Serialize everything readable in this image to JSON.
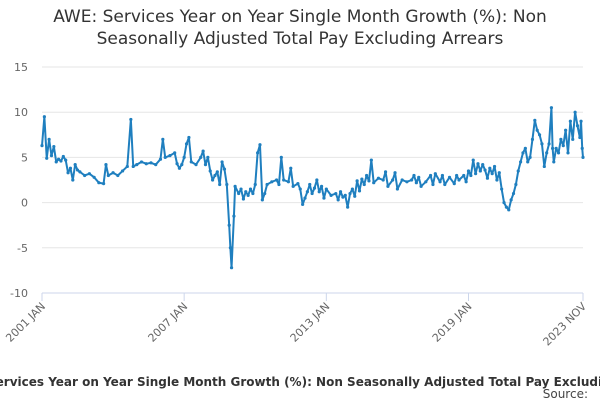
{
  "chart_data": {
    "type": "line",
    "title_line1": "AWE: Services Year on Year Single Month Growth (%): Non",
    "title_line2": "Seasonally Adjusted Total Pay Excluding Arrears",
    "xlabel": "",
    "ylabel": "",
    "ylim": [
      -10,
      15
    ],
    "yticks": [
      "15",
      "10",
      "5",
      "0",
      "-5",
      "-10"
    ],
    "ytick_values": [
      15,
      10,
      5,
      0,
      -5,
      -10
    ],
    "xlim": [
      2001.0,
      2023.833
    ],
    "xticks": [
      "2001 JAN",
      "2007 JAN",
      "2013 JAN",
      "2019 JAN",
      "2023 NOV"
    ],
    "xtick_values": [
      2001.0,
      2007.0,
      2013.0,
      2019.0,
      2023.833
    ],
    "grid": true,
    "legend": "bottom",
    "color": "#1f7fbf",
    "series": [
      {
        "name": "Services Year on Year Single Month Growth (%): Non Seasonally Adjusted Total Pay Excluding Arrears",
        "points": [
          [
            2001.0,
            6.3
          ],
          [
            2001.1,
            9.5
          ],
          [
            2001.2,
            4.9
          ],
          [
            2001.3,
            7.0
          ],
          [
            2001.4,
            5.2
          ],
          [
            2001.5,
            6.2
          ],
          [
            2001.6,
            4.5
          ],
          [
            2001.7,
            4.8
          ],
          [
            2001.8,
            4.6
          ],
          [
            2001.9,
            5.1
          ],
          [
            2002.0,
            4.7
          ],
          [
            2002.1,
            3.3
          ],
          [
            2002.2,
            3.8
          ],
          [
            2002.3,
            2.5
          ],
          [
            2002.4,
            4.2
          ],
          [
            2002.5,
            3.6
          ],
          [
            2002.6,
            3.4
          ],
          [
            2002.8,
            3.0
          ],
          [
            2003.0,
            3.2
          ],
          [
            2003.2,
            2.8
          ],
          [
            2003.4,
            2.2
          ],
          [
            2003.6,
            2.1
          ],
          [
            2003.7,
            4.2
          ],
          [
            2003.8,
            3.0
          ],
          [
            2004.0,
            3.3
          ],
          [
            2004.2,
            3.0
          ],
          [
            2004.4,
            3.5
          ],
          [
            2004.6,
            4.0
          ],
          [
            2004.75,
            9.2
          ],
          [
            2004.85,
            4.0
          ],
          [
            2005.0,
            4.2
          ],
          [
            2005.2,
            4.5
          ],
          [
            2005.4,
            4.3
          ],
          [
            2005.6,
            4.4
          ],
          [
            2005.8,
            4.2
          ],
          [
            2006.0,
            4.8
          ],
          [
            2006.1,
            7.0
          ],
          [
            2006.2,
            5.0
          ],
          [
            2006.4,
            5.2
          ],
          [
            2006.6,
            5.5
          ],
          [
            2006.7,
            4.3
          ],
          [
            2006.8,
            3.8
          ],
          [
            2006.9,
            4.2
          ],
          [
            2007.0,
            5.0
          ],
          [
            2007.1,
            6.5
          ],
          [
            2007.2,
            7.2
          ],
          [
            2007.3,
            4.5
          ],
          [
            2007.5,
            4.2
          ],
          [
            2007.7,
            5.0
          ],
          [
            2007.8,
            5.7
          ],
          [
            2007.9,
            4.2
          ],
          [
            2008.0,
            5.0
          ],
          [
            2008.1,
            3.5
          ],
          [
            2008.2,
            2.5
          ],
          [
            2008.3,
            3.0
          ],
          [
            2008.4,
            3.4
          ],
          [
            2008.5,
            2.0
          ],
          [
            2008.6,
            4.5
          ],
          [
            2008.7,
            3.7
          ],
          [
            2008.8,
            2.0
          ],
          [
            2008.9,
            -2.5
          ],
          [
            2008.95,
            -5.0
          ],
          [
            2009.0,
            -7.2
          ],
          [
            2009.1,
            -1.5
          ],
          [
            2009.15,
            1.8
          ],
          [
            2009.3,
            1.0
          ],
          [
            2009.4,
            1.5
          ],
          [
            2009.5,
            0.4
          ],
          [
            2009.6,
            1.2
          ],
          [
            2009.7,
            0.8
          ],
          [
            2009.8,
            1.5
          ],
          [
            2009.9,
            1.0
          ],
          [
            2010.0,
            2.0
          ],
          [
            2010.1,
            5.5
          ],
          [
            2010.2,
            6.4
          ],
          [
            2010.3,
            0.3
          ],
          [
            2010.4,
            1.0
          ],
          [
            2010.5,
            2.0
          ],
          [
            2010.7,
            2.3
          ],
          [
            2010.9,
            2.5
          ],
          [
            2011.0,
            2.0
          ],
          [
            2011.1,
            5.0
          ],
          [
            2011.2,
            2.5
          ],
          [
            2011.4,
            2.3
          ],
          [
            2011.5,
            3.8
          ],
          [
            2011.6,
            1.8
          ],
          [
            2011.8,
            2.1
          ],
          [
            2011.9,
            1.5
          ],
          [
            2012.0,
            -0.2
          ],
          [
            2012.1,
            0.5
          ],
          [
            2012.2,
            1.2
          ],
          [
            2012.3,
            2.0
          ],
          [
            2012.4,
            1.0
          ],
          [
            2012.5,
            1.6
          ],
          [
            2012.6,
            2.5
          ],
          [
            2012.7,
            1.2
          ],
          [
            2012.8,
            1.8
          ],
          [
            2012.9,
            0.5
          ],
          [
            2013.0,
            1.5
          ],
          [
            2013.2,
            0.8
          ],
          [
            2013.4,
            1.0
          ],
          [
            2013.5,
            0.3
          ],
          [
            2013.6,
            1.2
          ],
          [
            2013.7,
            0.6
          ],
          [
            2013.8,
            0.8
          ],
          [
            2013.9,
            -0.5
          ],
          [
            2014.0,
            1.0
          ],
          [
            2014.1,
            1.5
          ],
          [
            2014.2,
            0.7
          ],
          [
            2014.3,
            2.4
          ],
          [
            2014.4,
            1.3
          ],
          [
            2014.5,
            2.6
          ],
          [
            2014.6,
            2.0
          ],
          [
            2014.7,
            3.0
          ],
          [
            2014.8,
            2.4
          ],
          [
            2014.9,
            4.7
          ],
          [
            2015.0,
            2.2
          ],
          [
            2015.2,
            2.7
          ],
          [
            2015.4,
            2.5
          ],
          [
            2015.5,
            3.4
          ],
          [
            2015.6,
            1.8
          ],
          [
            2015.8,
            2.5
          ],
          [
            2015.9,
            3.3
          ],
          [
            2016.0,
            1.5
          ],
          [
            2016.2,
            2.5
          ],
          [
            2016.4,
            2.3
          ],
          [
            2016.6,
            2.5
          ],
          [
            2016.7,
            3.0
          ],
          [
            2016.8,
            2.2
          ],
          [
            2016.9,
            2.8
          ],
          [
            2017.0,
            1.8
          ],
          [
            2017.2,
            2.3
          ],
          [
            2017.4,
            3.0
          ],
          [
            2017.5,
            2.0
          ],
          [
            2017.6,
            3.2
          ],
          [
            2017.8,
            2.3
          ],
          [
            2017.9,
            3.0
          ],
          [
            2018.0,
            2.0
          ],
          [
            2018.2,
            2.8
          ],
          [
            2018.4,
            2.1
          ],
          [
            2018.5,
            3.0
          ],
          [
            2018.6,
            2.5
          ],
          [
            2018.8,
            3.0
          ],
          [
            2018.9,
            2.3
          ],
          [
            2019.0,
            3.5
          ],
          [
            2019.1,
            3.0
          ],
          [
            2019.2,
            4.7
          ],
          [
            2019.3,
            3.2
          ],
          [
            2019.4,
            4.3
          ],
          [
            2019.5,
            3.5
          ],
          [
            2019.6,
            4.2
          ],
          [
            2019.7,
            3.6
          ],
          [
            2019.8,
            2.7
          ],
          [
            2019.9,
            3.8
          ],
          [
            2020.0,
            3.2
          ],
          [
            2020.1,
            4.0
          ],
          [
            2020.2,
            2.5
          ],
          [
            2020.3,
            3.3
          ],
          [
            2020.4,
            1.5
          ],
          [
            2020.5,
            0.0
          ],
          [
            2020.6,
            -0.5
          ],
          [
            2020.7,
            -0.8
          ],
          [
            2020.8,
            0.3
          ],
          [
            2020.9,
            1.0
          ],
          [
            2021.0,
            2.0
          ],
          [
            2021.1,
            3.5
          ],
          [
            2021.2,
            4.5
          ],
          [
            2021.3,
            5.5
          ],
          [
            2021.4,
            6.0
          ],
          [
            2021.5,
            4.5
          ],
          [
            2021.6,
            5.0
          ],
          [
            2021.7,
            7.0
          ],
          [
            2021.8,
            9.1
          ],
          [
            2021.9,
            8.0
          ],
          [
            2022.0,
            7.5
          ],
          [
            2022.1,
            6.5
          ],
          [
            2022.2,
            4.0
          ],
          [
            2022.3,
            5.5
          ],
          [
            2022.4,
            6.5
          ],
          [
            2022.5,
            10.5
          ],
          [
            2022.55,
            6.0
          ],
          [
            2022.6,
            4.5
          ],
          [
            2022.7,
            6.0
          ],
          [
            2022.8,
            5.5
          ],
          [
            2022.9,
            7.0
          ],
          [
            2023.0,
            6.3
          ],
          [
            2023.1,
            8.0
          ],
          [
            2023.2,
            5.5
          ],
          [
            2023.3,
            9.0
          ],
          [
            2023.4,
            7.0
          ],
          [
            2023.5,
            10.0
          ],
          [
            2023.6,
            8.5
          ],
          [
            2023.7,
            7.2
          ],
          [
            2023.75,
            9.0
          ],
          [
            2023.8,
            6.0
          ],
          [
            2023.833,
            5.0
          ]
        ]
      }
    ]
  },
  "footer": {
    "series_label": "Services Year on Year Single Month Growth (%): Non Seasonally Adjusted Total Pay Excluding Arrears",
    "source_label": "Source:"
  }
}
